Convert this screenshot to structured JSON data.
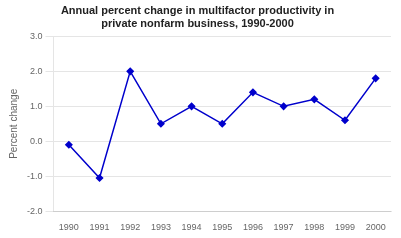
{
  "chart_data": {
    "type": "line",
    "title": "Annual percent change in multifactor productivity in\nprivate nonfarm business, 1990-2000",
    "y_label": "Percent change",
    "x": [
      1990,
      1991,
      1992,
      1993,
      1994,
      1995,
      1996,
      1997,
      1998,
      1999,
      2000
    ],
    "values": [
      -0.1,
      -1.05,
      2.0,
      0.5,
      1.0,
      0.5,
      1.4,
      1.0,
      1.2,
      0.6,
      1.8
    ],
    "color": "#0000cc",
    "marker": "diamond",
    "xlim": [
      1989.5,
      2000.5
    ],
    "xticks": [
      1990,
      1991,
      1992,
      1993,
      1994,
      1995,
      1996,
      1997,
      1998,
      1999,
      2000
    ],
    "ylim": [
      -2.0,
      3.0
    ],
    "yticks": [
      {
        "value": -2.0,
        "label": "-2.0"
      },
      {
        "value": -1.0,
        "label": "-1.0"
      },
      {
        "value": 0.0,
        "label": "0.0"
      },
      {
        "value": 1.0,
        "label": "1.0"
      },
      {
        "value": 2.0,
        "label": "2.0"
      },
      {
        "value": 3.0,
        "label": "3.0"
      }
    ],
    "grid": true
  }
}
